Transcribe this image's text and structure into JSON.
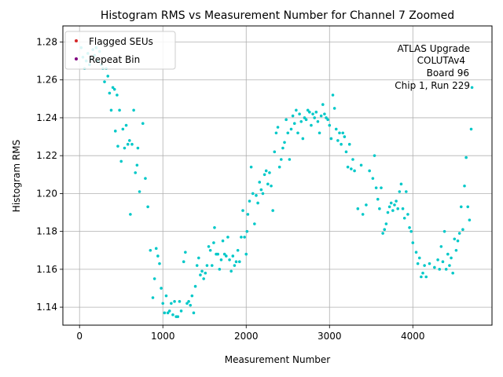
{
  "chart_data": {
    "type": "scatter",
    "title": "Histogram RMS vs Measurement Number for Channel 7 Zoomed",
    "xlabel": "Measurement Number",
    "ylabel": "Histogram RMS",
    "xlim": [
      -200,
      4950
    ],
    "ylim": [
      1.1305,
      1.2885
    ],
    "xticks": [
      0,
      1000,
      2000,
      3000,
      4000
    ],
    "yticks": [
      1.14,
      1.16,
      1.18,
      1.2,
      1.22,
      1.24,
      1.26,
      1.28
    ],
    "ytick_labels": [
      "1.14",
      "1.16",
      "1.18",
      "1.20",
      "1.22",
      "1.24",
      "1.26",
      "1.28"
    ],
    "grid": true,
    "legend_location": "top-left",
    "legend": [
      {
        "name": "Flagged SEUs",
        "color": "#d62728"
      },
      {
        "name": "Repeat Bin",
        "color": "#800080"
      }
    ],
    "annotation": [
      "ATLAS Upgrade",
      "COLUTAv4",
      "Board 96",
      "Chip 1, Run 229"
    ],
    "series": [
      {
        "name": "Histogram RMS",
        "color": "#00c8c8",
        "points": [
          [
            20,
            1.277
          ],
          [
            40,
            1.272
          ],
          [
            60,
            1.266
          ],
          [
            80,
            1.27
          ],
          [
            100,
            1.274
          ],
          [
            120,
            1.268
          ],
          [
            140,
            1.271
          ],
          [
            160,
            1.276
          ],
          [
            180,
            1.273
          ],
          [
            200,
            1.277
          ],
          [
            220,
            1.27
          ],
          [
            240,
            1.275
          ],
          [
            260,
            1.268
          ],
          [
            280,
            1.266
          ],
          [
            300,
            1.259
          ],
          [
            320,
            1.266
          ],
          [
            340,
            1.262
          ],
          [
            360,
            1.253
          ],
          [
            380,
            1.244
          ],
          [
            400,
            1.256
          ],
          [
            420,
            1.255
          ],
          [
            430,
            1.233
          ],
          [
            450,
            1.252
          ],
          [
            460,
            1.225
          ],
          [
            480,
            1.244
          ],
          [
            500,
            1.217
          ],
          [
            520,
            1.234
          ],
          [
            540,
            1.224
          ],
          [
            560,
            1.236
          ],
          [
            580,
            1.226
          ],
          [
            600,
            1.228
          ],
          [
            610,
            1.189
          ],
          [
            630,
            1.226
          ],
          [
            650,
            1.244
          ],
          [
            670,
            1.211
          ],
          [
            690,
            1.215
          ],
          [
            700,
            1.224
          ],
          [
            720,
            1.201
          ],
          [
            760,
            1.237
          ],
          [
            790,
            1.208
          ],
          [
            820,
            1.193
          ],
          [
            850,
            1.17
          ],
          [
            880,
            1.145
          ],
          [
            900,
            1.155
          ],
          [
            920,
            1.171
          ],
          [
            940,
            1.167
          ],
          [
            960,
            1.163
          ],
          [
            980,
            1.15
          ],
          [
            1000,
            1.142
          ],
          [
            1020,
            1.137
          ],
          [
            1040,
            1.146
          ],
          [
            1060,
            1.137
          ],
          [
            1080,
            1.138
          ],
          [
            1100,
            1.142
          ],
          [
            1120,
            1.136
          ],
          [
            1140,
            1.143
          ],
          [
            1160,
            1.135
          ],
          [
            1180,
            1.135
          ],
          [
            1200,
            1.143
          ],
          [
            1220,
            1.138
          ],
          [
            1250,
            1.164
          ],
          [
            1270,
            1.169
          ],
          [
            1290,
            1.142
          ],
          [
            1310,
            1.143
          ],
          [
            1330,
            1.141
          ],
          [
            1350,
            1.146
          ],
          [
            1370,
            1.137
          ],
          [
            1390,
            1.151
          ],
          [
            1410,
            1.162
          ],
          [
            1430,
            1.166
          ],
          [
            1450,
            1.157
          ],
          [
            1470,
            1.159
          ],
          [
            1490,
            1.155
          ],
          [
            1510,
            1.158
          ],
          [
            1530,
            1.162
          ],
          [
            1550,
            1.172
          ],
          [
            1570,
            1.17
          ],
          [
            1590,
            1.162
          ],
          [
            1610,
            1.174
          ],
          [
            1620,
            1.182
          ],
          [
            1640,
            1.168
          ],
          [
            1660,
            1.168
          ],
          [
            1680,
            1.16
          ],
          [
            1700,
            1.165
          ],
          [
            1720,
            1.175
          ],
          [
            1740,
            1.168
          ],
          [
            1760,
            1.167
          ],
          [
            1780,
            1.177
          ],
          [
            1800,
            1.165
          ],
          [
            1820,
            1.159
          ],
          [
            1840,
            1.167
          ],
          [
            1860,
            1.162
          ],
          [
            1880,
            1.164
          ],
          [
            1900,
            1.17
          ],
          [
            1920,
            1.164
          ],
          [
            1940,
            1.177
          ],
          [
            1960,
            1.191
          ],
          [
            1980,
            1.177
          ],
          [
            2000,
            1.168
          ],
          [
            2010,
            1.18
          ],
          [
            2020,
            1.189
          ],
          [
            2040,
            1.196
          ],
          [
            2060,
            1.214
          ],
          [
            2080,
            1.2
          ],
          [
            2100,
            1.184
          ],
          [
            2120,
            1.199
          ],
          [
            2140,
            1.195
          ],
          [
            2160,
            1.206
          ],
          [
            2180,
            1.202
          ],
          [
            2200,
            1.2
          ],
          [
            2220,
            1.21
          ],
          [
            2240,
            1.212
          ],
          [
            2260,
            1.205
          ],
          [
            2280,
            1.211
          ],
          [
            2300,
            1.204
          ],
          [
            2320,
            1.191
          ],
          [
            2340,
            1.222
          ],
          [
            2360,
            1.232
          ],
          [
            2380,
            1.235
          ],
          [
            2400,
            1.214
          ],
          [
            2420,
            1.218
          ],
          [
            2440,
            1.224
          ],
          [
            2460,
            1.227
          ],
          [
            2480,
            1.239
          ],
          [
            2500,
            1.232
          ],
          [
            2520,
            1.218
          ],
          [
            2540,
            1.234
          ],
          [
            2560,
            1.241
          ],
          [
            2580,
            1.237
          ],
          [
            2600,
            1.244
          ],
          [
            2620,
            1.232
          ],
          [
            2640,
            1.242
          ],
          [
            2660,
            1.238
          ],
          [
            2680,
            1.229
          ],
          [
            2700,
            1.24
          ],
          [
            2720,
            1.239
          ],
          [
            2740,
            1.244
          ],
          [
            2760,
            1.243
          ],
          [
            2780,
            1.236
          ],
          [
            2800,
            1.242
          ],
          [
            2820,
            1.24
          ],
          [
            2840,
            1.243
          ],
          [
            2860,
            1.238
          ],
          [
            2880,
            1.232
          ],
          [
            2900,
            1.241
          ],
          [
            2920,
            1.247
          ],
          [
            2940,
            1.242
          ],
          [
            2960,
            1.24
          ],
          [
            2980,
            1.239
          ],
          [
            3000,
            1.236
          ],
          [
            3020,
            1.229
          ],
          [
            3040,
            1.252
          ],
          [
            3060,
            1.245
          ],
          [
            3080,
            1.234
          ],
          [
            3100,
            1.228
          ],
          [
            3120,
            1.232
          ],
          [
            3140,
            1.226
          ],
          [
            3160,
            1.232
          ],
          [
            3180,
            1.23
          ],
          [
            3200,
            1.222
          ],
          [
            3220,
            1.214
          ],
          [
            3240,
            1.226
          ],
          [
            3260,
            1.213
          ],
          [
            3280,
            1.218
          ],
          [
            3300,
            1.212
          ],
          [
            3340,
            1.192
          ],
          [
            3380,
            1.215
          ],
          [
            3400,
            1.189
          ],
          [
            3440,
            1.194
          ],
          [
            3480,
            1.212
          ],
          [
            3520,
            1.208
          ],
          [
            3540,
            1.22
          ],
          [
            3560,
            1.203
          ],
          [
            3580,
            1.197
          ],
          [
            3600,
            1.192
          ],
          [
            3620,
            1.203
          ],
          [
            3640,
            1.179
          ],
          [
            3660,
            1.181
          ],
          [
            3680,
            1.184
          ],
          [
            3700,
            1.19
          ],
          [
            3720,
            1.193
          ],
          [
            3740,
            1.195
          ],
          [
            3760,
            1.191
          ],
          [
            3780,
            1.194
          ],
          [
            3800,
            1.196
          ],
          [
            3820,
            1.192
          ],
          [
            3840,
            1.201
          ],
          [
            3860,
            1.205
          ],
          [
            3880,
            1.192
          ],
          [
            3900,
            1.187
          ],
          [
            3920,
            1.201
          ],
          [
            3940,
            1.189
          ],
          [
            3960,
            1.182
          ],
          [
            3980,
            1.18
          ],
          [
            4000,
            1.174
          ],
          [
            4040,
            1.169
          ],
          [
            4060,
            1.163
          ],
          [
            4080,
            1.166
          ],
          [
            4100,
            1.156
          ],
          [
            4120,
            1.158
          ],
          [
            4140,
            1.162
          ],
          [
            4160,
            1.156
          ],
          [
            4200,
            1.163
          ],
          [
            4260,
            1.161
          ],
          [
            4300,
            1.165
          ],
          [
            4320,
            1.16
          ],
          [
            4340,
            1.172
          ],
          [
            4360,
            1.164
          ],
          [
            4380,
            1.18
          ],
          [
            4400,
            1.16
          ],
          [
            4420,
            1.168
          ],
          [
            4440,
            1.162
          ],
          [
            4460,
            1.166
          ],
          [
            4480,
            1.158
          ],
          [
            4500,
            1.176
          ],
          [
            4520,
            1.17
          ],
          [
            4540,
            1.175
          ],
          [
            4560,
            1.179
          ],
          [
            4580,
            1.193
          ],
          [
            4600,
            1.181
          ],
          [
            4620,
            1.204
          ],
          [
            4640,
            1.219
          ],
          [
            4660,
            1.193
          ],
          [
            4680,
            1.186
          ],
          [
            4700,
            1.234
          ],
          [
            4710,
            1.256
          ]
        ]
      }
    ]
  }
}
